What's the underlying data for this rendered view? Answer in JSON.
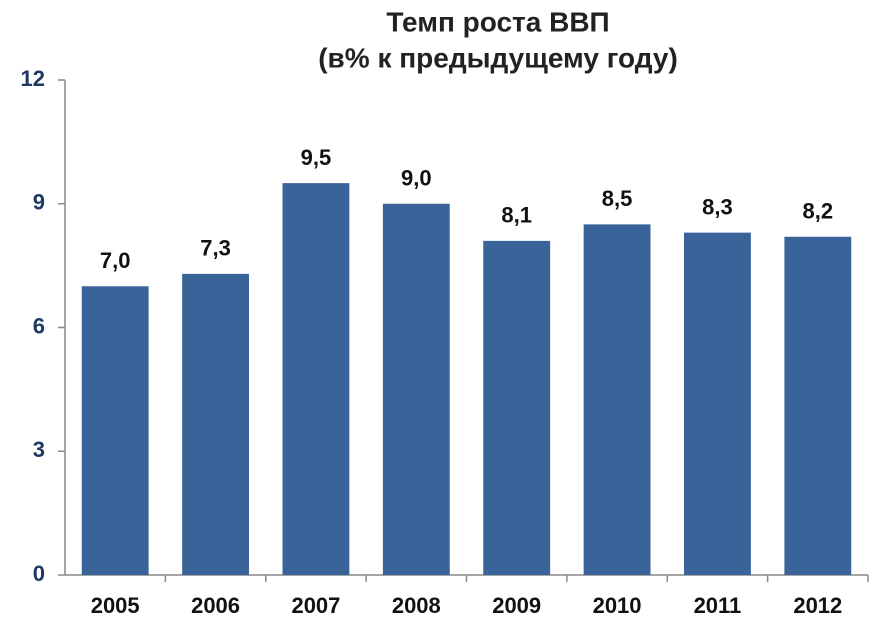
{
  "chart_data": {
    "type": "bar",
    "title": "Темп роста ВВП",
    "subtitle": "(в%  к предыдущему году)",
    "categories": [
      "2005",
      "2006",
      "2007",
      "2008",
      "2009",
      "2010",
      "2011",
      "2012"
    ],
    "values": [
      7.0,
      7.3,
      9.5,
      9.0,
      8.1,
      8.5,
      8.3,
      8.2
    ],
    "value_labels": [
      "7,0",
      "7,3",
      "9,5",
      "9,0",
      "8,1",
      "8,5",
      "8,3",
      "8,2"
    ],
    "color": "#3a6399",
    "ylim": [
      0,
      12
    ],
    "yticks": [
      0,
      3,
      6,
      9,
      12
    ],
    "grid": false
  }
}
